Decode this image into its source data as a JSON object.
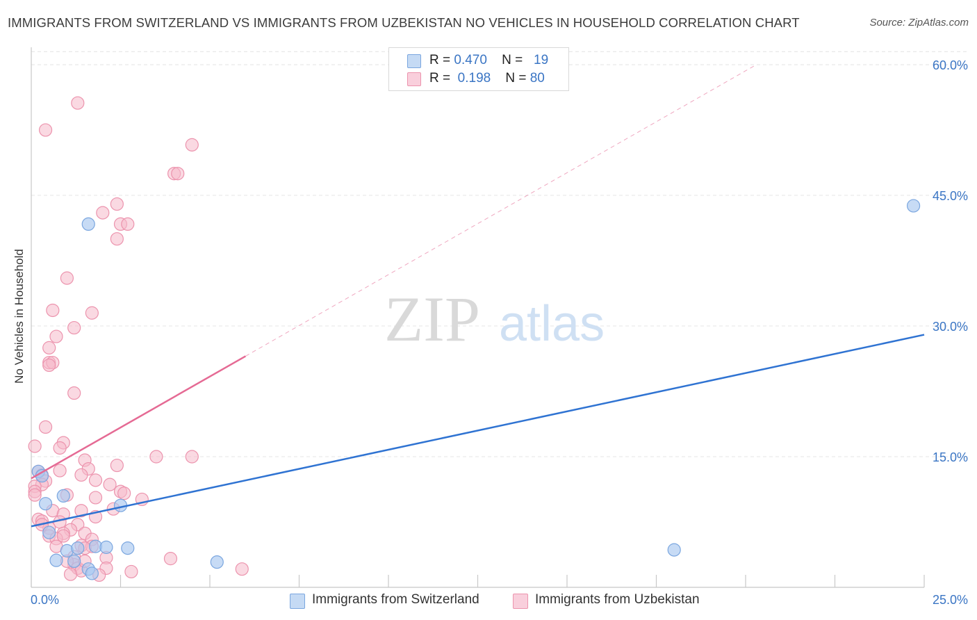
{
  "header": {
    "title": "IMMIGRANTS FROM SWITZERLAND VS IMMIGRANTS FROM UZBEKISTAN NO VEHICLES IN HOUSEHOLD CORRELATION CHART",
    "source": "Source: ZipAtlas.com"
  },
  "legend": {
    "rows": [
      {
        "r_label": "R =",
        "r_value": "0.470",
        "n_label": "N =",
        "n_value": "19"
      },
      {
        "r_label": "R =",
        "r_value": "0.198",
        "n_label": "N =",
        "n_value": "80"
      }
    ]
  },
  "bottom_legend": {
    "series1": "Immigrants from Switzerland",
    "series2": "Immigrants from Uzbekistan"
  },
  "watermark": {
    "zip": "ZIP",
    "atlas": "atlas"
  },
  "colors": {
    "blue_fill": "#a9c7ef",
    "blue_stroke": "#7aa6df",
    "blue_line": "#2f73d2",
    "pink_fill": "#f6b9cb",
    "pink_stroke": "#ec93ad",
    "pink_line": "#e56a94",
    "axis_text": "#3a75c4",
    "grid": "#e4e4e4"
  },
  "chart_data": {
    "type": "scatter",
    "title": "IMMIGRANTS FROM SWITZERLAND VS IMMIGRANTS FROM UZBEKISTAN NO VEHICLES IN HOUSEHOLD CORRELATION CHART",
    "xlabel": "",
    "ylabel": "No Vehicles in Household",
    "xlim": [
      0,
      25
    ],
    "ylim": [
      0,
      62
    ],
    "x_tick_labels": [
      "0.0%",
      "25.0%"
    ],
    "y_ticks": [
      15,
      30,
      45,
      60
    ],
    "y_tick_labels": [
      "15.0%",
      "30.0%",
      "45.0%",
      "60.0%"
    ],
    "grid": true,
    "legend_position": "top-center",
    "series": [
      {
        "name": "Immigrants from Switzerland",
        "R": 0.47,
        "N": 19,
        "trend": {
          "x0": 0,
          "y0": 7.0,
          "x1": 25,
          "y1": 29.0,
          "solid_until": 25
        },
        "points": [
          [
            0.2,
            13.3
          ],
          [
            0.4,
            9.6
          ],
          [
            0.5,
            6.3
          ],
          [
            0.7,
            3.1
          ],
          [
            0.9,
            10.5
          ],
          [
            1.0,
            4.2
          ],
          [
            1.2,
            3.0
          ],
          [
            1.3,
            4.5
          ],
          [
            1.6,
            2.1
          ],
          [
            1.7,
            1.6
          ],
          [
            1.8,
            4.7
          ],
          [
            2.1,
            4.6
          ],
          [
            2.5,
            9.4
          ],
          [
            2.7,
            4.5
          ],
          [
            5.2,
            2.9
          ],
          [
            1.6,
            41.7
          ],
          [
            18.0,
            4.3
          ],
          [
            24.7,
            43.8
          ],
          [
            0.3,
            12.8
          ]
        ]
      },
      {
        "name": "Immigrants from Uzbekistan",
        "R": 0.198,
        "N": 80,
        "trend": {
          "x0": 0,
          "y0": 12.5,
          "x1": 20.3,
          "y1": 60.0,
          "solid_until": 6.0
        },
        "points": [
          [
            1.3,
            55.6
          ],
          [
            0.4,
            52.5
          ],
          [
            4.5,
            50.8
          ],
          [
            4.0,
            47.5
          ],
          [
            4.1,
            47.5
          ],
          [
            2.4,
            44.0
          ],
          [
            2.0,
            43.0
          ],
          [
            2.5,
            41.7
          ],
          [
            2.7,
            41.7
          ],
          [
            2.4,
            40.0
          ],
          [
            1.0,
            35.5
          ],
          [
            0.6,
            31.8
          ],
          [
            1.7,
            31.5
          ],
          [
            1.2,
            29.8
          ],
          [
            0.7,
            28.8
          ],
          [
            0.5,
            27.5
          ],
          [
            0.5,
            25.8
          ],
          [
            0.6,
            25.8
          ],
          [
            0.5,
            25.5
          ],
          [
            1.2,
            22.3
          ],
          [
            0.4,
            18.4
          ],
          [
            0.1,
            16.2
          ],
          [
            0.9,
            16.6
          ],
          [
            0.8,
            16.0
          ],
          [
            3.5,
            15.0
          ],
          [
            4.5,
            15.0
          ],
          [
            1.5,
            14.6
          ],
          [
            2.4,
            14.0
          ],
          [
            1.6,
            13.6
          ],
          [
            0.8,
            13.4
          ],
          [
            0.2,
            13.3
          ],
          [
            0.3,
            12.9
          ],
          [
            1.4,
            12.9
          ],
          [
            0.4,
            12.2
          ],
          [
            1.8,
            12.3
          ],
          [
            0.3,
            11.8
          ],
          [
            0.1,
            11.6
          ],
          [
            2.2,
            11.8
          ],
          [
            0.1,
            11.0
          ],
          [
            2.5,
            11.0
          ],
          [
            2.6,
            10.8
          ],
          [
            0.1,
            10.6
          ],
          [
            1.0,
            10.6
          ],
          [
            3.1,
            10.1
          ],
          [
            1.8,
            10.3
          ],
          [
            0.6,
            8.8
          ],
          [
            1.4,
            8.8
          ],
          [
            2.3,
            9.0
          ],
          [
            0.9,
            8.4
          ],
          [
            1.8,
            8.1
          ],
          [
            0.2,
            7.8
          ],
          [
            0.3,
            7.6
          ],
          [
            0.8,
            7.5
          ],
          [
            1.3,
            7.2
          ],
          [
            0.5,
            6.8
          ],
          [
            1.1,
            6.6
          ],
          [
            1.5,
            6.2
          ],
          [
            0.9,
            6.2
          ],
          [
            0.5,
            5.9
          ],
          [
            0.7,
            5.6
          ],
          [
            0.9,
            5.9
          ],
          [
            1.7,
            5.5
          ],
          [
            0.7,
            4.7
          ],
          [
            1.4,
            4.8
          ],
          [
            1.7,
            4.7
          ],
          [
            1.5,
            4.5
          ],
          [
            1.2,
            3.5
          ],
          [
            2.1,
            3.4
          ],
          [
            3.9,
            3.3
          ],
          [
            1.2,
            2.6
          ],
          [
            1.3,
            2.2
          ],
          [
            2.1,
            2.2
          ],
          [
            5.9,
            2.1
          ],
          [
            1.4,
            1.9
          ],
          [
            2.8,
            1.8
          ],
          [
            1.1,
            1.5
          ],
          [
            1.9,
            1.4
          ],
          [
            1.5,
            3.0
          ],
          [
            1.0,
            3.0
          ],
          [
            0.3,
            7.2
          ]
        ]
      }
    ]
  }
}
